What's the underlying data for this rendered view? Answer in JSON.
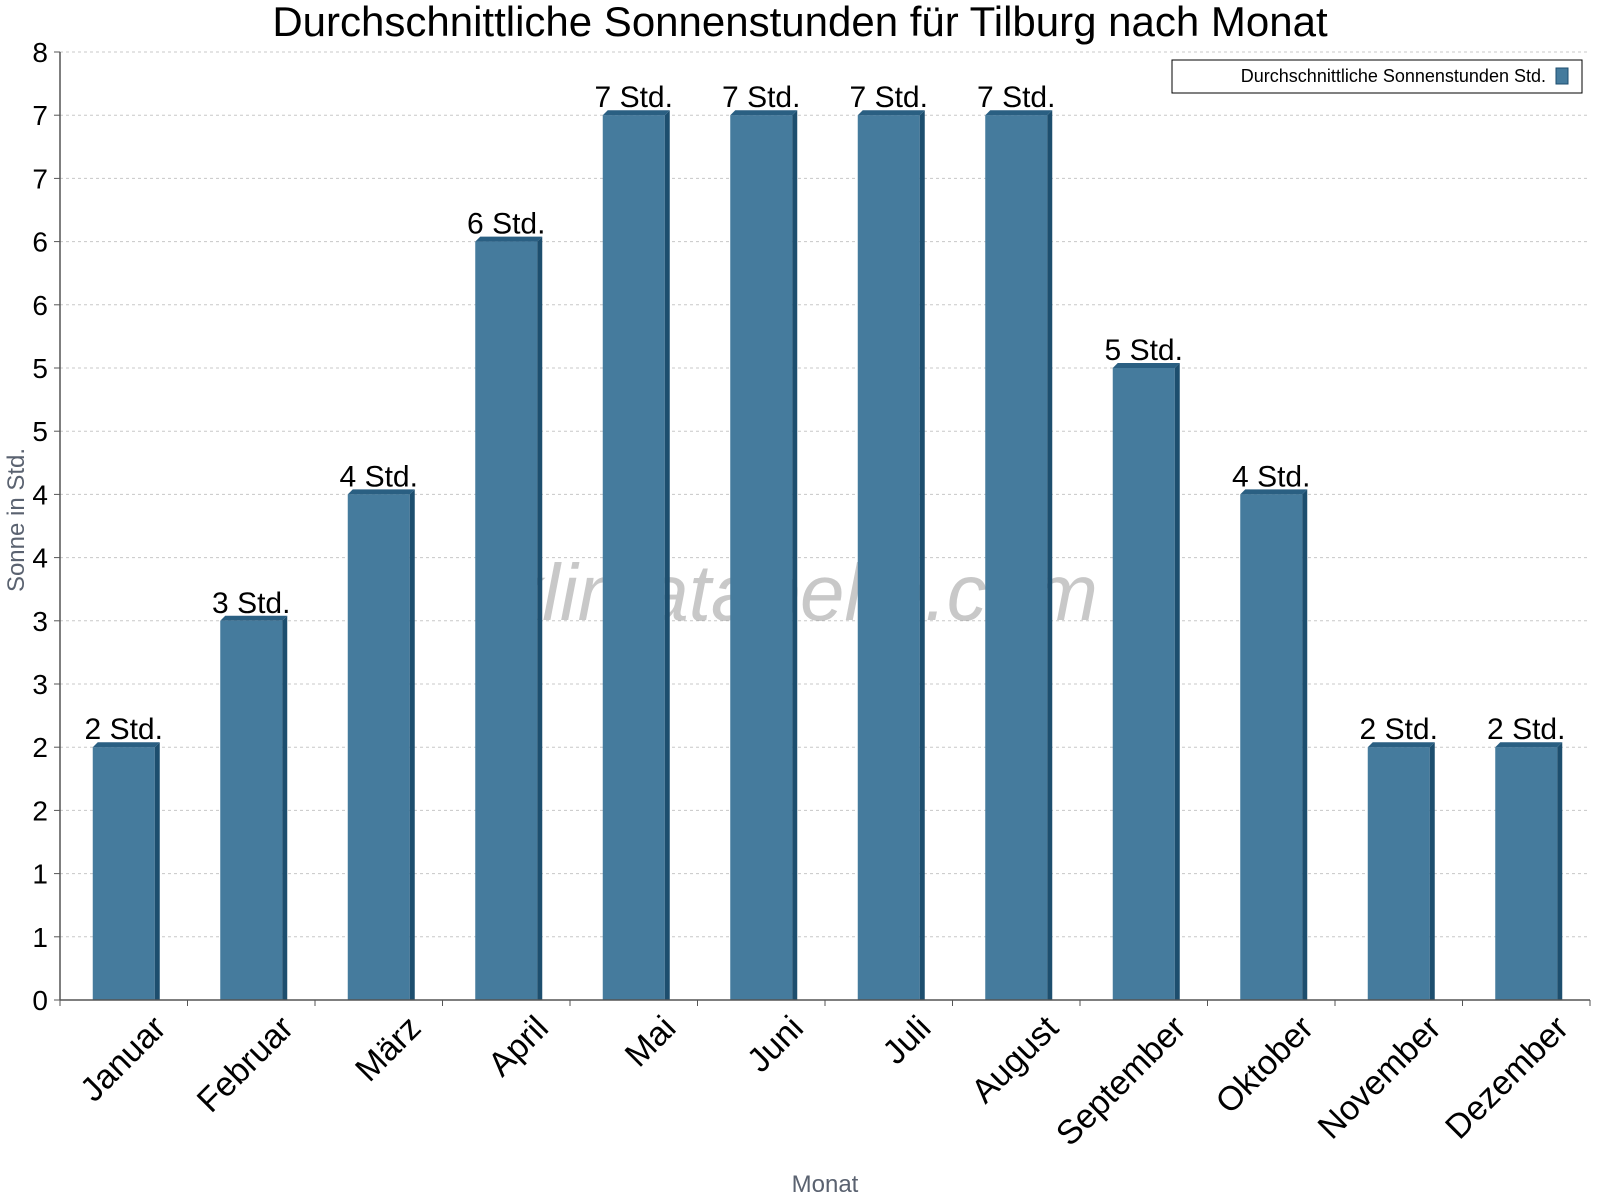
{
  "chart_data": {
    "type": "bar",
    "title": "Durchschnittliche Sonnenstunden für Tilburg nach Monat",
    "xlabel": "Monat",
    "ylabel": "Sonne in Std.",
    "categories": [
      "Januar",
      "Februar",
      "März",
      "April",
      "Mai",
      "Juni",
      "Juli",
      "August",
      "September",
      "Oktober",
      "November",
      "Dezember"
    ],
    "series": [
      {
        "name": "Durchschnittliche Sonnenstunden Std.",
        "values": [
          2,
          3,
          4,
          6,
          7,
          7,
          7,
          7,
          5,
          4,
          2,
          2
        ],
        "data_labels": [
          "2 Std.",
          "3 Std.",
          "4 Std.",
          "6 Std.",
          "7 Std.",
          "7 Std.",
          "7 Std.",
          "7 Std.",
          "5 Std.",
          "4 Std.",
          "2 Std.",
          "2 Std."
        ]
      }
    ],
    "ylim": [
      0,
      7.5
    ],
    "yticks": [
      0,
      0.5,
      1,
      1.5,
      2,
      2.5,
      3,
      3.5,
      4,
      4.5,
      5,
      5.5,
      6,
      6.5,
      7,
      7.5
    ],
    "ytick_labels": [
      "0",
      "1",
      "1",
      "2",
      "2",
      "3",
      "3",
      "4",
      "4",
      "5",
      "5",
      "6",
      "6",
      "7",
      "7",
      "8"
    ],
    "grid": true,
    "legend_position": "top-right",
    "watermark": "klimatabelle.com",
    "colors": {
      "bar_front": "#457b9d",
      "bar_side": "#1d4e6e",
      "bar_top": "#2a5f82",
      "grid": "#c8c8c8",
      "axis": "#555555"
    }
  }
}
